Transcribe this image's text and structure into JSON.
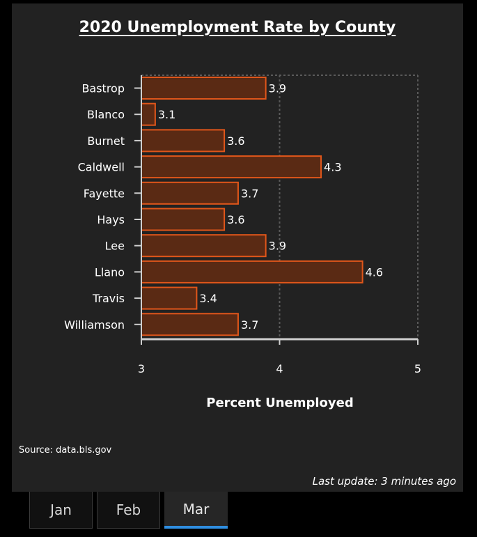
{
  "chart_data": {
    "type": "bar",
    "orientation": "horizontal",
    "title": "2020 Unemployment Rate by County",
    "xlabel": "Percent Unemployed",
    "ylabel": "",
    "categories": [
      "Bastrop",
      "Blanco",
      "Burnet",
      "Caldwell",
      "Fayette",
      "Hays",
      "Lee",
      "Llano",
      "Travis",
      "Williamson"
    ],
    "values": [
      3.9,
      3.1,
      3.6,
      4.3,
      3.7,
      3.6,
      3.9,
      4.6,
      3.4,
      3.7
    ],
    "xlim": [
      3,
      5
    ],
    "xticks": [
      "3",
      "4",
      "5"
    ],
    "grid": true,
    "bar_fill": "#5a2a14",
    "bar_stroke": "#e0561a"
  },
  "source": "Source: data.bls.gov",
  "last_update": "Last update: 3 minutes ago",
  "tabs": [
    {
      "label": "Jan",
      "active": false
    },
    {
      "label": "Feb",
      "active": false
    },
    {
      "label": "Mar",
      "active": true
    }
  ]
}
